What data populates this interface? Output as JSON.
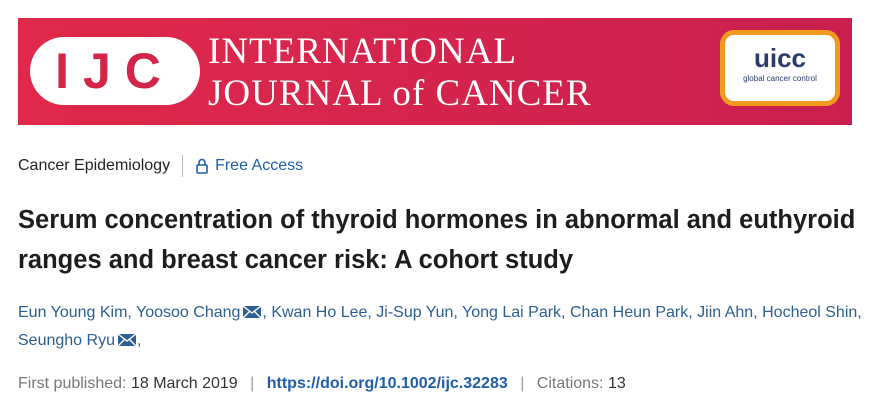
{
  "banner": {
    "logo": "IJC",
    "journal_line1": "INTERNATIONAL",
    "journal_line2": "JOURNAL of CANCER",
    "badge": "uicc",
    "badge_sub": "global cancer control"
  },
  "meta": {
    "section": "Cancer Epidemiology",
    "access": "Free Access"
  },
  "title": "Serum concentration of thyroid hormones in abnormal and euthyroid ranges and breast cancer risk: A cohort study",
  "authors": {
    "separator": ",",
    "list": [
      {
        "name": "Eun Young Kim",
        "email": false
      },
      {
        "name": "Yoosoo Chang",
        "email": true
      },
      {
        "name": "Kwan Ho Lee",
        "email": false
      },
      {
        "name": "Ji-Sup Yun",
        "email": false
      },
      {
        "name": "Yong Lai Park",
        "email": false
      },
      {
        "name": "Chan Heun Park",
        "email": false
      },
      {
        "name": "Jiin Ahn",
        "email": false
      },
      {
        "name": "Hocheol Shin",
        "email": false
      },
      {
        "name": "Seungho Ryu",
        "email": true
      }
    ]
  },
  "publication": {
    "label": "First published:",
    "date": "18 March 2019",
    "separator": "|",
    "doi": "https://doi.org/10.1002/ijc.32283",
    "citations_label": "Citations:",
    "citations": "13"
  }
}
